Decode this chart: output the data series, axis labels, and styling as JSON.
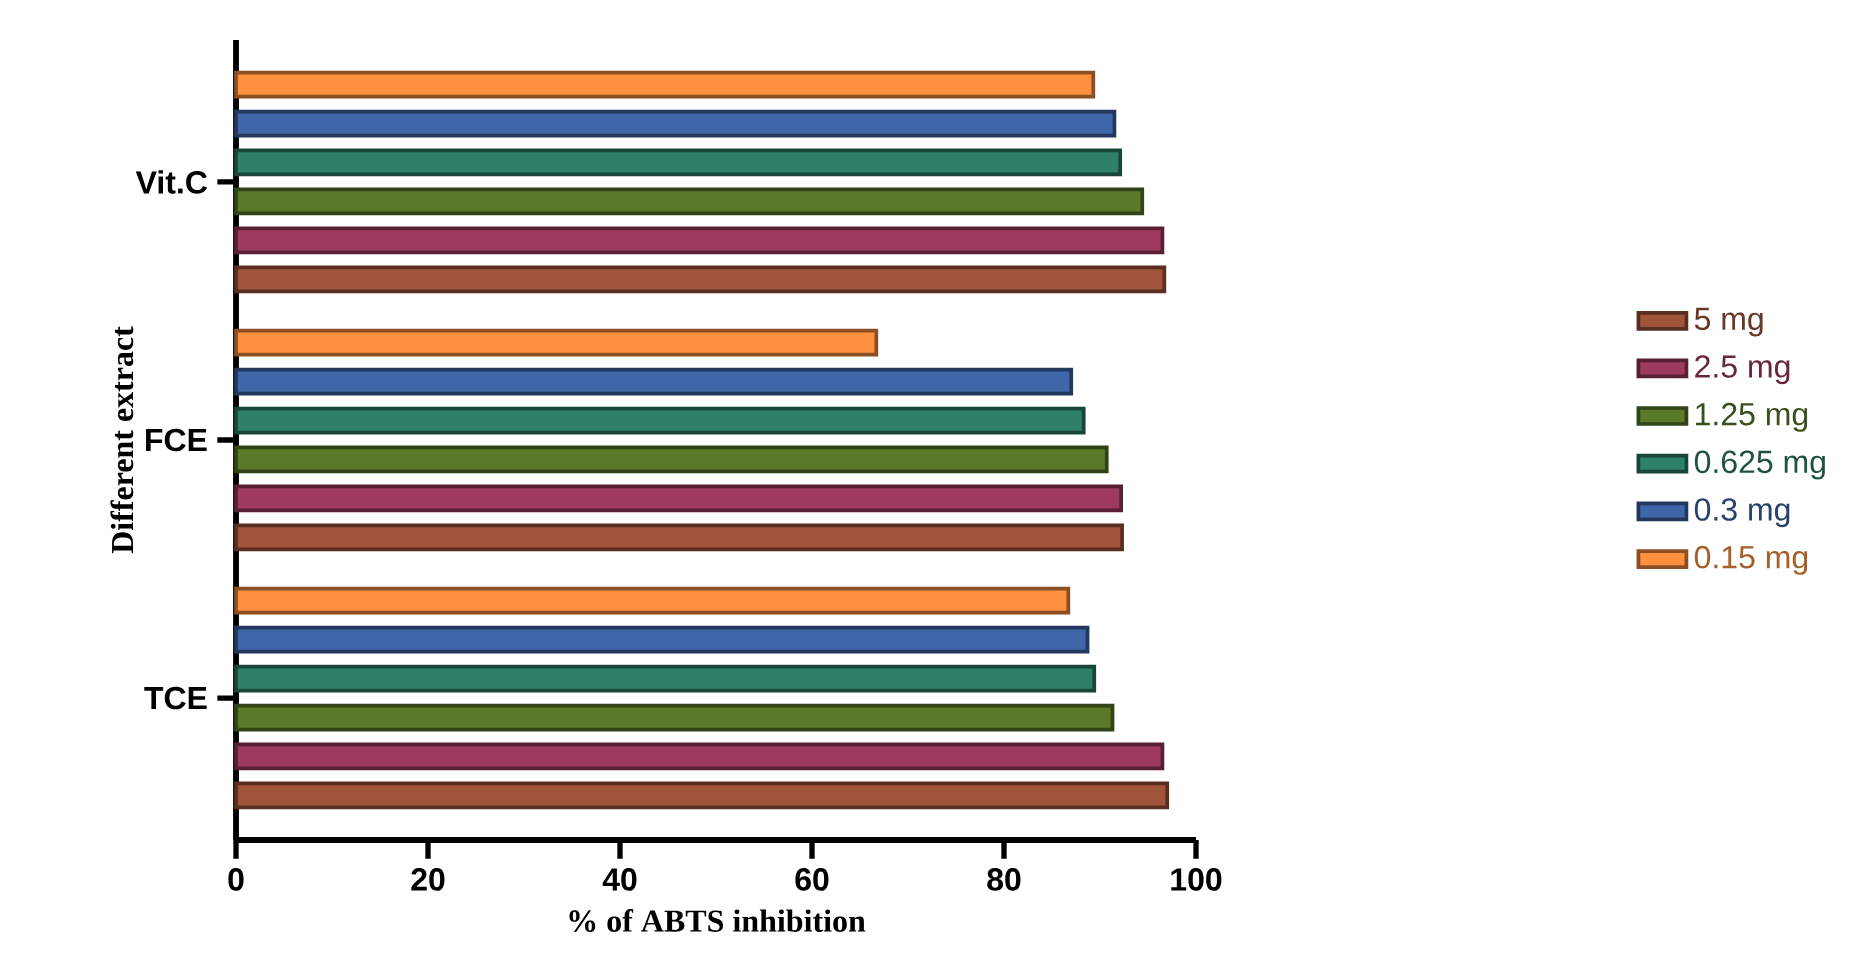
{
  "chart_data": {
    "type": "bar",
    "orientation": "horizontal",
    "xlabel": "% of ABTS inhibition",
    "ylabel": "Different extract",
    "categories": [
      "Vit.C",
      "FCE",
      "TCE"
    ],
    "xlim": [
      0,
      100
    ],
    "xticks": [
      0,
      20,
      40,
      60,
      80,
      100
    ],
    "legend": "right",
    "grid": false,
    "series": [
      {
        "name": "5 mg",
        "color": "#a0553a",
        "values": [
          96.7,
          92.3,
          97.0
        ]
      },
      {
        "name": "2.5 mg",
        "color": "#9e3a5e",
        "values": [
          96.5,
          92.2,
          96.5
        ]
      },
      {
        "name": "1.25 mg",
        "color": "#5a7a2a",
        "values": [
          94.4,
          90.7,
          91.3
        ]
      },
      {
        "name": "0.625 mg",
        "color": "#2e8068",
        "values": [
          92.1,
          88.3,
          89.4
        ]
      },
      {
        "name": "0.3 mg",
        "color": "#3f66a8",
        "values": [
          91.5,
          87.0,
          88.7
        ]
      },
      {
        "name": "0.15 mg",
        "color": "#ff9040",
        "values": [
          89.3,
          66.7,
          86.7
        ]
      }
    ]
  }
}
